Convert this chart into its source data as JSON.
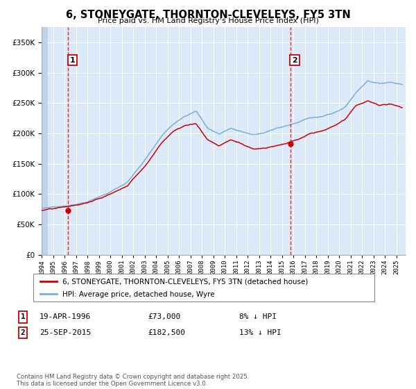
{
  "title": "6, STONEYGATE, THORNTON-CLEVELEYS, FY5 3TN",
  "subtitle": "Price paid vs. HM Land Registry's House Price Index (HPI)",
  "red_label": "6, STONEYGATE, THORNTON-CLEVELEYS, FY5 3TN (detached house)",
  "blue_label": "HPI: Average price, detached house, Wyre",
  "sale1_date": "19-APR-1996",
  "sale1_price": 73000,
  "sale1_note": "8% ↓ HPI",
  "sale2_date": "25-SEP-2015",
  "sale2_price": 182500,
  "sale2_note": "13% ↓ HPI",
  "footer": "Contains HM Land Registry data © Crown copyright and database right 2025.\nThis data is licensed under the Open Government Licence v3.0.",
  "fig_bg_color": "#ffffff",
  "plot_bg_color": "#dce9f8",
  "grid_color": "#ffffff",
  "red_color": "#cc0000",
  "blue_color": "#7aaed6",
  "ylim": [
    0,
    375000
  ],
  "xlim_start": 1994.0,
  "xlim_end": 2025.8,
  "sale1_x": 1996.29,
  "sale2_x": 2015.73
}
